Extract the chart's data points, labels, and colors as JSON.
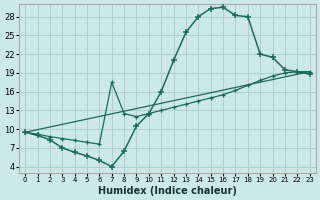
{
  "xlabel": "Humidex (Indice chaleur)",
  "bg_color": "#cce8e8",
  "grid_color": "#b0d0d0",
  "line_color": "#1a6b5a",
  "xlim": [
    -0.5,
    23.5
  ],
  "ylim": [
    3.0,
    30.0
  ],
  "xticks": [
    0,
    1,
    2,
    3,
    4,
    5,
    6,
    7,
    8,
    9,
    10,
    11,
    12,
    13,
    14,
    15,
    16,
    17,
    18,
    19,
    20,
    21,
    22,
    23
  ],
  "yticks": [
    4,
    7,
    10,
    13,
    16,
    19,
    22,
    25,
    28
  ],
  "curve1_x": [
    0,
    1,
    2,
    3,
    4,
    5,
    6,
    7,
    8,
    9,
    10,
    11,
    12,
    13,
    14,
    15,
    16,
    17,
    18,
    19,
    20,
    21,
    22,
    23
  ],
  "curve1_y": [
    9.5,
    9.0,
    8.3,
    7.0,
    6.3,
    5.7,
    5.0,
    4.0,
    6.5,
    10.5,
    12.5,
    16.0,
    21.0,
    25.5,
    28.0,
    29.3,
    29.5,
    28.2,
    28.0,
    22.0,
    21.5,
    19.5,
    19.2,
    18.8
  ],
  "curve2_x": [
    0,
    1,
    2,
    3,
    4,
    5,
    6,
    7,
    8,
    9,
    10,
    11,
    12,
    13,
    14,
    15,
    16,
    17,
    18,
    19,
    20,
    21,
    22,
    23
  ],
  "curve2_y": [
    9.5,
    9.2,
    8.8,
    8.5,
    8.2,
    7.9,
    7.6,
    17.5,
    12.5,
    12.0,
    12.5,
    13.0,
    13.5,
    14.0,
    14.5,
    15.0,
    15.5,
    16.2,
    17.0,
    17.8,
    18.5,
    19.0,
    19.2,
    19.2
  ],
  "curve3_x": [
    0,
    23
  ],
  "curve3_y": [
    9.5,
    19.2
  ]
}
